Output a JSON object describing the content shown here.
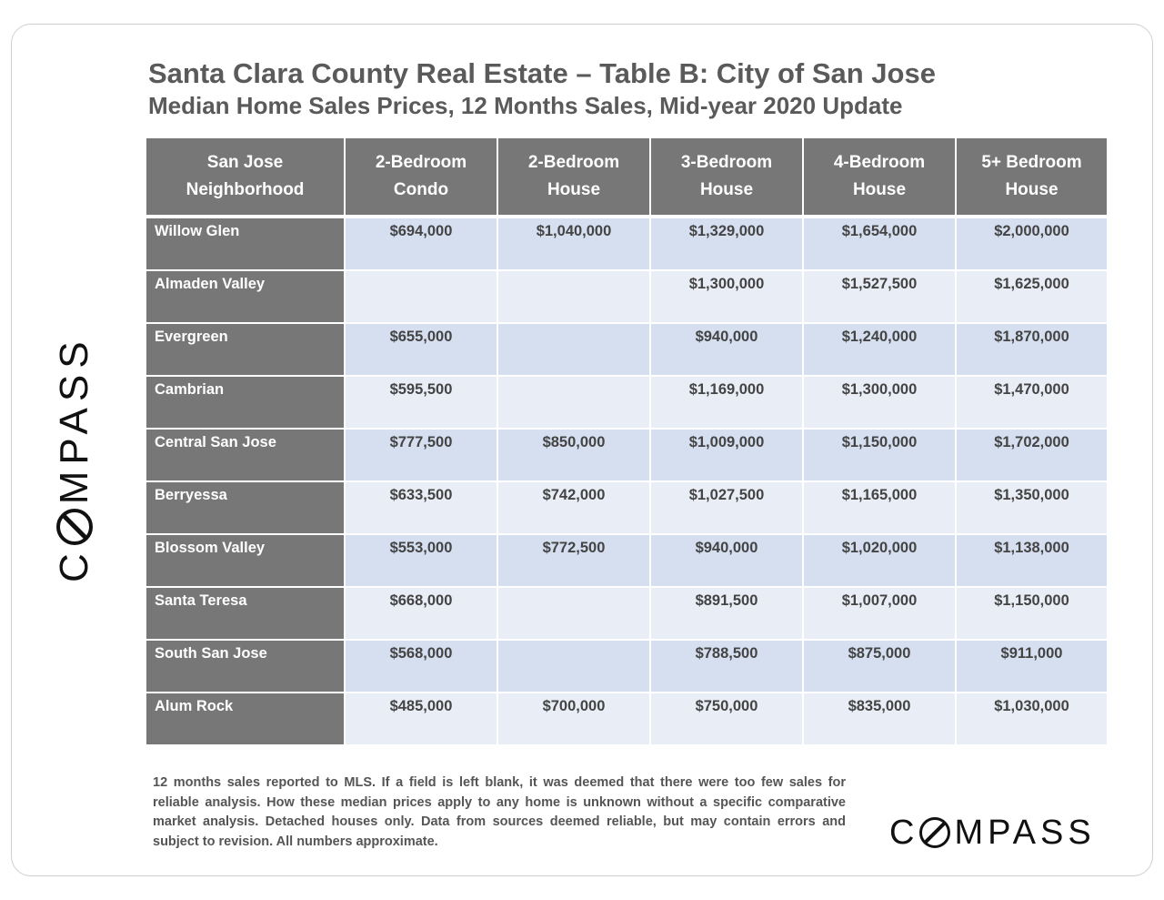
{
  "title": "Santa Clara County Real Estate – Table B: City of San Jose",
  "subtitle": "Median Home Sales Prices, 12 Months Sales, Mid-year 2020 Update",
  "brand": {
    "logo_prefix": "C",
    "logo_suffix": "MPASS",
    "logo_icon": "compass-logo-o-icon"
  },
  "table": {
    "headers": [
      {
        "line1": "San Jose",
        "line2": "Neighborhood"
      },
      {
        "line1": "2-Bedroom",
        "line2": "Condo"
      },
      {
        "line1": "2-Bedroom",
        "line2": "House"
      },
      {
        "line1": "3-Bedroom",
        "line2": "House"
      },
      {
        "line1": "4-Bedroom",
        "line2": "House"
      },
      {
        "line1": "5+ Bedroom",
        "line2": "House"
      }
    ],
    "rows": [
      {
        "neighborhood": "Willow Glen",
        "values": [
          "$694,000",
          "$1,040,000",
          "$1,329,000",
          "$1,654,000",
          "$2,000,000"
        ]
      },
      {
        "neighborhood": "Almaden Valley",
        "values": [
          "",
          "",
          "$1,300,000",
          "$1,527,500",
          "$1,625,000"
        ]
      },
      {
        "neighborhood": "Evergreen",
        "values": [
          "$655,000",
          "",
          "$940,000",
          "$1,240,000",
          "$1,870,000"
        ]
      },
      {
        "neighborhood": "Cambrian",
        "values": [
          "$595,500",
          "",
          "$1,169,000",
          "$1,300,000",
          "$1,470,000"
        ]
      },
      {
        "neighborhood": "Central San Jose",
        "values": [
          "$777,500",
          "$850,000",
          "$1,009,000",
          "$1,150,000",
          "$1,702,000"
        ]
      },
      {
        "neighborhood": "Berryessa",
        "values": [
          "$633,500",
          "$742,000",
          "$1,027,500",
          "$1,165,000",
          "$1,350,000"
        ]
      },
      {
        "neighborhood": "Blossom Valley",
        "values": [
          "$553,000",
          "$772,500",
          "$940,000",
          "$1,020,000",
          "$1,138,000"
        ]
      },
      {
        "neighborhood": "Santa Teresa",
        "values": [
          "$668,000",
          "",
          "$891,500",
          "$1,007,000",
          "$1,150,000"
        ]
      },
      {
        "neighborhood": "South San Jose",
        "values": [
          "$568,000",
          "",
          "$788,500",
          "$875,000",
          "$911,000"
        ]
      },
      {
        "neighborhood": "Alum Rock",
        "values": [
          "$485,000",
          "$700,000",
          "$750,000",
          "$835,000",
          "$1,030,000"
        ]
      }
    ]
  },
  "footnote": "12 months sales reported to MLS. If a field is left blank, it was deemed that there were too few sales for reliable analysis. How these median prices apply to any home is unknown without a specific comparative market analysis. Detached houses only. Data from sources deemed reliable, but may contain errors and subject to revision. All numbers approximate.",
  "colors": {
    "header_bg": "#777777",
    "row_odd": "#d5dff0",
    "row_even": "#e9edf6",
    "title_text": "#5a5a5a"
  }
}
